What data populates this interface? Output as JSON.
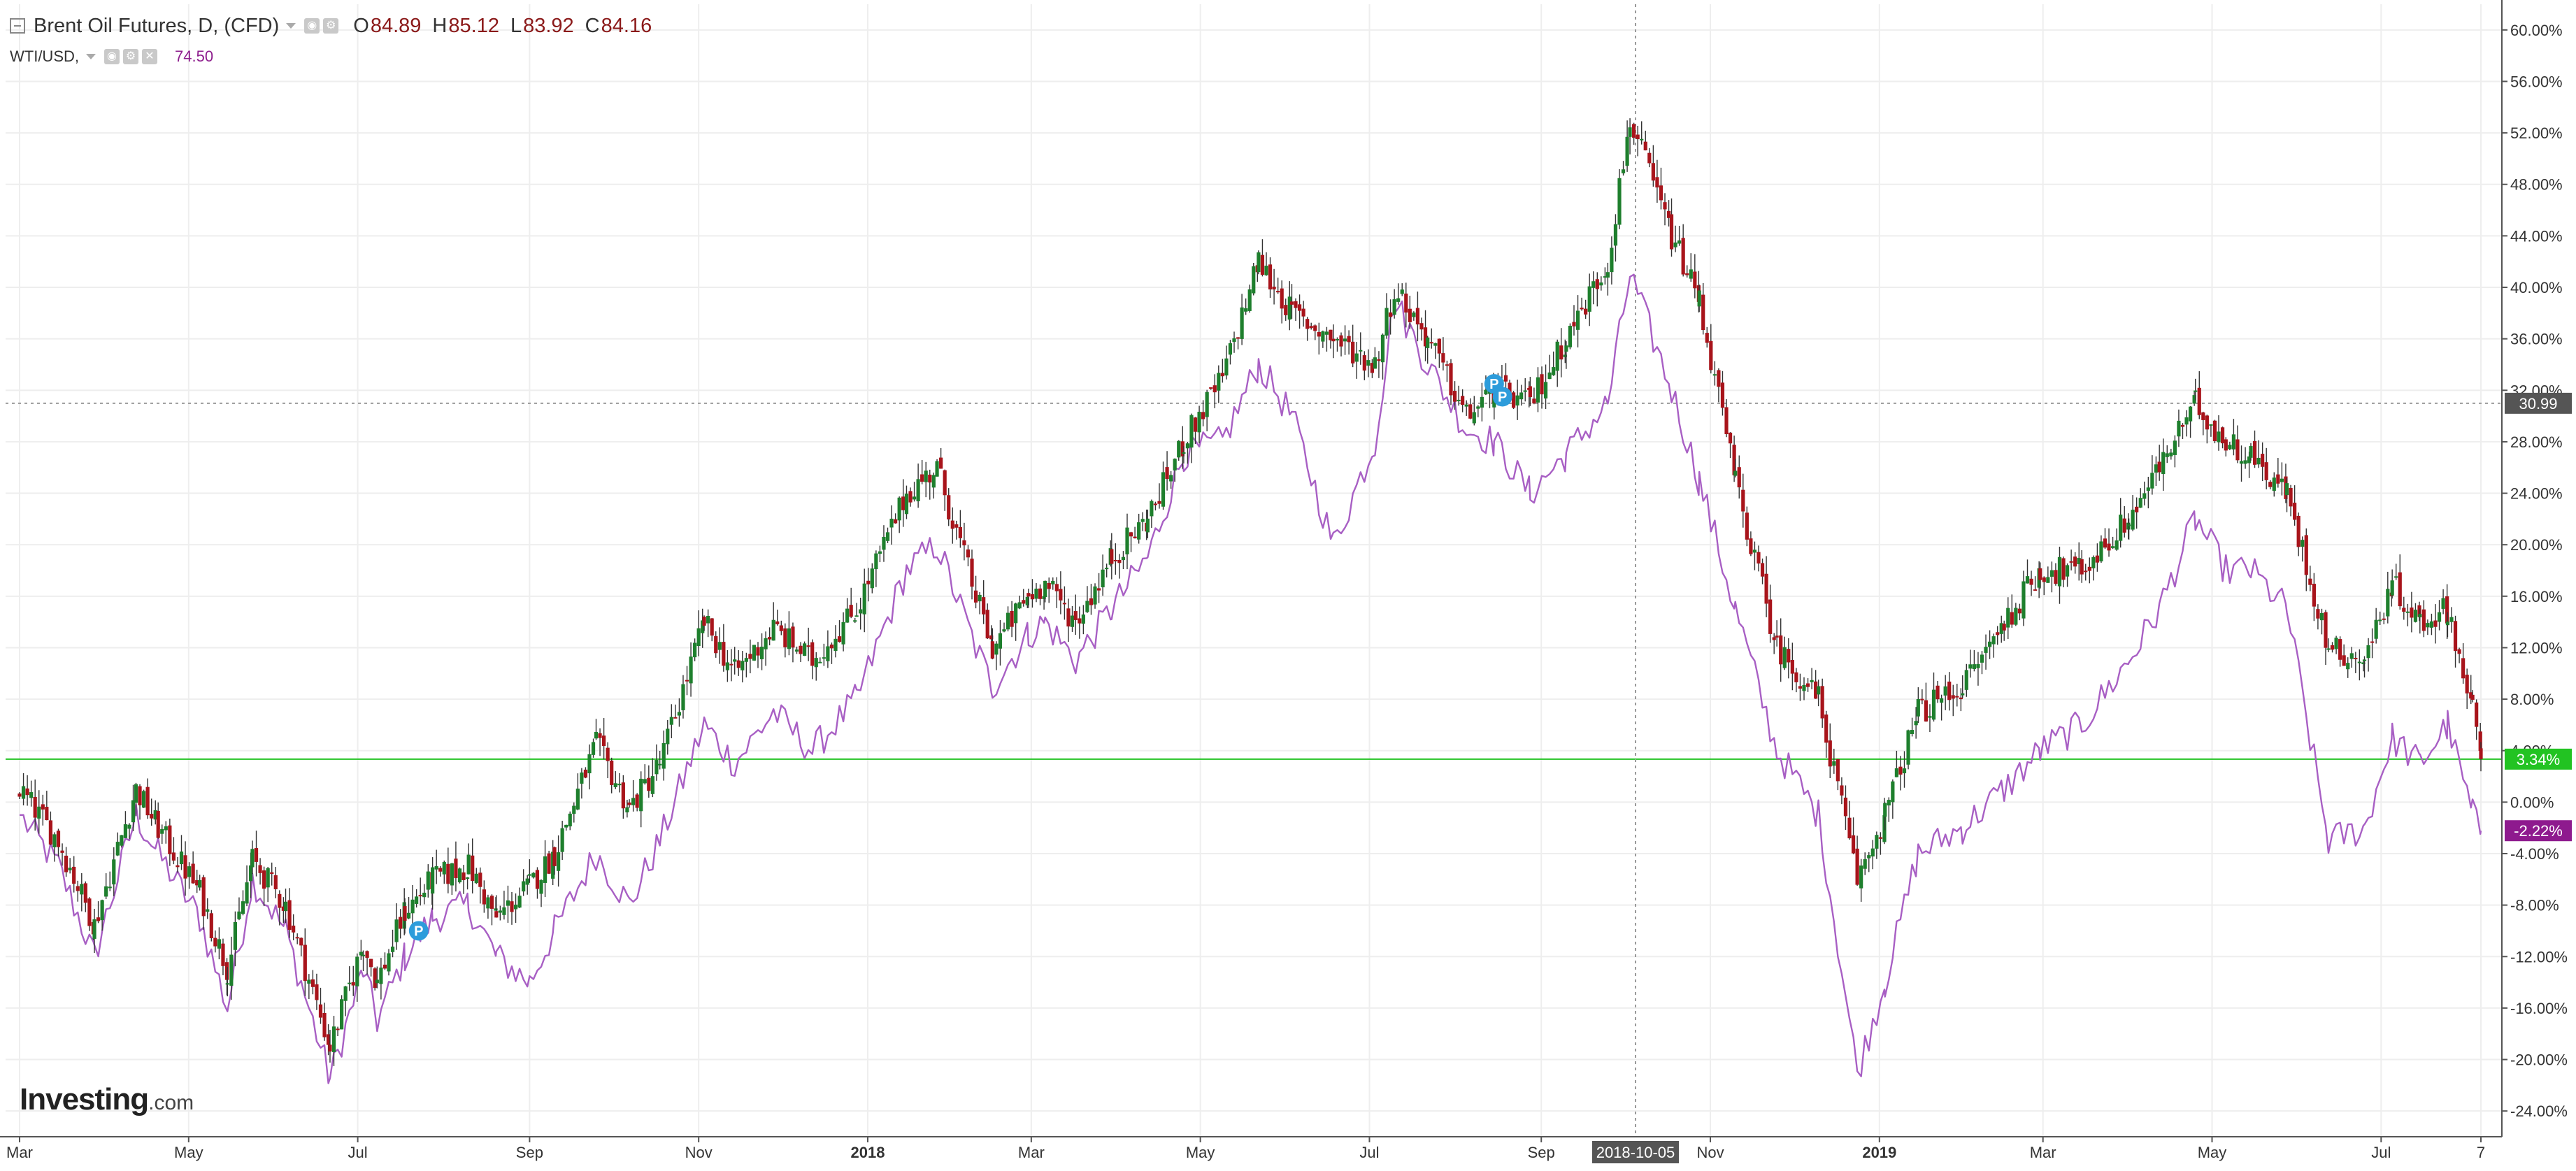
{
  "legend": {
    "main_series": "Brent Oil Futures, D, (CFD)",
    "ohlc": [
      {
        "key": "O",
        "value": "84.89"
      },
      {
        "key": "H",
        "value": "85.12"
      },
      {
        "key": "L",
        "value": "83.92"
      },
      {
        "key": "C",
        "value": "84.16"
      }
    ],
    "compare_series": "WTI/USD,",
    "compare_value": "74.50"
  },
  "logo": {
    "brand": "Investing",
    "suffix": ".com"
  },
  "colors": {
    "up_candle": "#1e7f2d",
    "down_candle": "#a8141b",
    "compare_line": "#a85fc4",
    "grid": "#eeeeee",
    "axis": "#555555",
    "brent_label_bg": "#22c322",
    "wti_label_bg": "#8e1a8e",
    "crosshair_label_bg": "#555555",
    "alert_marker": "#2d9cdb"
  },
  "crosshair": {
    "x_label": "2018-10-05",
    "y_label": "30.99"
  },
  "chart_data": {
    "type": "candlestick",
    "title": "Brent Oil Futures, D, (CFD)",
    "y_axis": {
      "unit": "%",
      "ylim": [
        -26,
        62
      ],
      "tick_values": [
        -24,
        -20,
        -16,
        -12,
        -8,
        -4,
        0,
        4,
        8,
        12,
        16,
        20,
        24,
        28,
        32,
        36,
        40,
        44,
        48,
        52,
        56,
        60
      ],
      "tick_labels": [
        "-24.00%",
        "-20.00%",
        "-16.00%",
        "-12.00%",
        "-8.00%",
        "-4.00%",
        "0.00%",
        "4.00%",
        "8.00%",
        "12.00%",
        "16.00%",
        "20.00%",
        "24.00%",
        "28.00%",
        "32.00%",
        "36.00%",
        "40.00%",
        "44.00%",
        "48.00%",
        "52.00%",
        "56.00%",
        "60.00%"
      ],
      "position": "right"
    },
    "x_axis": {
      "range": [
        "2017-03-01",
        "2019-08-06"
      ],
      "ticks": [
        {
          "date": "2017-03-01",
          "label": "Mar"
        },
        {
          "date": "2017-05-01",
          "label": "May"
        },
        {
          "date": "2017-07-01",
          "label": "Jul"
        },
        {
          "date": "2017-09-01",
          "label": "Sep"
        },
        {
          "date": "2017-11-01",
          "label": "Nov"
        },
        {
          "date": "2018-01-01",
          "label": "2018"
        },
        {
          "date": "2018-03-01",
          "label": "Mar"
        },
        {
          "date": "2018-05-01",
          "label": "May"
        },
        {
          "date": "2018-07-01",
          "label": "Jul"
        },
        {
          "date": "2018-09-01",
          "label": "Sep"
        },
        {
          "date": "2018-11-01",
          "label": "Nov"
        },
        {
          "date": "2019-01-01",
          "label": "2019"
        },
        {
          "date": "2019-03-01",
          "label": "Mar"
        },
        {
          "date": "2019-05-01",
          "label": "May"
        },
        {
          "date": "2019-07-01",
          "label": "Jul"
        },
        {
          "date": "2019-08-06",
          "label": "7"
        }
      ]
    },
    "grid": true,
    "series": [
      {
        "name": "Brent Oil Futures, D, (CFD)",
        "kind": "candlestick-path",
        "last_label": "3.34%",
        "last_value": 3.34,
        "points": [
          [
            "2017-03-01",
            1
          ],
          [
            "2017-03-15",
            -3
          ],
          [
            "2017-03-28",
            -9.5
          ],
          [
            "2017-04-12",
            1
          ],
          [
            "2017-04-20",
            -2
          ],
          [
            "2017-05-05",
            -7
          ],
          [
            "2017-05-15",
            -13
          ],
          [
            "2017-05-24",
            -4.5
          ],
          [
            "2017-06-05",
            -8
          ],
          [
            "2017-06-21",
            -19
          ],
          [
            "2017-07-03",
            -11
          ],
          [
            "2017-07-08",
            -14
          ],
          [
            "2017-07-18",
            -8.5
          ],
          [
            "2017-07-28",
            -6
          ],
          [
            "2017-08-10",
            -5
          ],
          [
            "2017-08-20",
            -9
          ],
          [
            "2017-09-01",
            -6.5
          ],
          [
            "2017-09-10",
            -4
          ],
          [
            "2017-09-25",
            4.5
          ],
          [
            "2017-10-07",
            -0.5
          ],
          [
            "2017-10-18",
            3
          ],
          [
            "2017-11-03",
            14
          ],
          [
            "2017-11-14",
            10
          ],
          [
            "2017-11-28",
            13.5
          ],
          [
            "2017-12-12",
            11
          ],
          [
            "2017-12-28",
            15
          ],
          [
            "2018-01-15",
            24
          ],
          [
            "2018-01-26",
            26
          ],
          [
            "2018-02-09",
            16
          ],
          [
            "2018-02-15",
            12
          ],
          [
            "2018-02-28",
            16
          ],
          [
            "2018-03-06",
            17
          ],
          [
            "2018-03-17",
            14
          ],
          [
            "2018-03-30",
            19
          ],
          [
            "2018-04-12",
            22
          ],
          [
            "2018-04-25",
            28
          ],
          [
            "2018-05-09",
            33
          ],
          [
            "2018-05-22",
            42
          ],
          [
            "2018-06-03",
            38
          ],
          [
            "2018-06-18",
            36
          ],
          [
            "2018-07-03",
            34
          ],
          [
            "2018-07-10",
            40
          ],
          [
            "2018-07-22",
            36
          ],
          [
            "2018-08-05",
            30
          ],
          [
            "2018-08-15",
            32
          ],
          [
            "2018-08-28",
            31
          ],
          [
            "2018-09-10",
            36
          ],
          [
            "2018-09-25",
            42
          ],
          [
            "2018-10-03",
            53
          ],
          [
            "2018-10-18",
            44
          ],
          [
            "2018-10-28",
            39
          ],
          [
            "2018-11-10",
            25
          ],
          [
            "2018-11-25",
            12
          ],
          [
            "2018-12-10",
            8
          ],
          [
            "2018-12-24",
            -6
          ],
          [
            "2019-01-03",
            -1
          ],
          [
            "2019-01-15",
            7
          ],
          [
            "2019-01-31",
            9
          ],
          [
            "2019-02-15",
            14
          ],
          [
            "2019-02-28",
            18
          ],
          [
            "2019-03-15",
            18
          ],
          [
            "2019-04-01",
            22
          ],
          [
            "2019-04-12",
            26
          ],
          [
            "2019-04-25",
            31
          ],
          [
            "2019-05-06",
            28
          ],
          [
            "2019-05-15",
            27
          ],
          [
            "2019-05-28",
            24
          ],
          [
            "2019-06-12",
            12
          ],
          [
            "2019-06-25",
            11
          ],
          [
            "2019-07-05",
            17
          ],
          [
            "2019-07-15",
            14
          ],
          [
            "2019-07-25",
            15
          ],
          [
            "2019-08-03",
            7
          ],
          [
            "2019-08-06",
            3.34
          ]
        ]
      },
      {
        "name": "WTI/USD",
        "kind": "line",
        "last_label": "-2.22%",
        "last_value": -2.22,
        "points": [
          [
            "2017-03-01",
            -1
          ],
          [
            "2017-03-15",
            -5
          ],
          [
            "2017-03-28",
            -12
          ],
          [
            "2017-04-12",
            -1
          ],
          [
            "2017-04-20",
            -4
          ],
          [
            "2017-05-05",
            -9
          ],
          [
            "2017-05-15",
            -16
          ],
          [
            "2017-05-24",
            -6
          ],
          [
            "2017-06-05",
            -10
          ],
          [
            "2017-06-21",
            -21.5
          ],
          [
            "2017-07-03",
            -13
          ],
          [
            "2017-07-08",
            -17
          ],
          [
            "2017-07-18",
            -12
          ],
          [
            "2017-07-28",
            -9
          ],
          [
            "2017-08-10",
            -8
          ],
          [
            "2017-08-20",
            -12
          ],
          [
            "2017-09-01",
            -14
          ],
          [
            "2017-09-10",
            -10
          ],
          [
            "2017-09-25",
            -4
          ],
          [
            "2017-10-07",
            -8
          ],
          [
            "2017-10-18",
            -3
          ],
          [
            "2017-11-03",
            6
          ],
          [
            "2017-11-14",
            3
          ],
          [
            "2017-11-28",
            7
          ],
          [
            "2017-12-12",
            4
          ],
          [
            "2017-12-28",
            8
          ],
          [
            "2018-01-15",
            18
          ],
          [
            "2018-01-26",
            20
          ],
          [
            "2018-02-09",
            12
          ],
          [
            "2018-02-15",
            9
          ],
          [
            "2018-02-28",
            13
          ],
          [
            "2018-03-06",
            14
          ],
          [
            "2018-03-17",
            11
          ],
          [
            "2018-03-30",
            15
          ],
          [
            "2018-04-12",
            19
          ],
          [
            "2018-04-25",
            27
          ],
          [
            "2018-05-09",
            28
          ],
          [
            "2018-05-22",
            34
          ],
          [
            "2018-06-03",
            30
          ],
          [
            "2018-06-18",
            20
          ],
          [
            "2018-07-03",
            28
          ],
          [
            "2018-07-10",
            39
          ],
          [
            "2018-07-22",
            34
          ],
          [
            "2018-08-05",
            29
          ],
          [
            "2018-08-15",
            28
          ],
          [
            "2018-08-28",
            24
          ],
          [
            "2018-09-10",
            27
          ],
          [
            "2018-09-25",
            31
          ],
          [
            "2018-10-03",
            41
          ],
          [
            "2018-10-18",
            32
          ],
          [
            "2018-10-28",
            25
          ],
          [
            "2018-11-10",
            15
          ],
          [
            "2018-11-25",
            4
          ],
          [
            "2018-12-10",
            -1
          ],
          [
            "2018-12-24",
            -21
          ],
          [
            "2019-01-03",
            -14
          ],
          [
            "2019-01-15",
            -4
          ],
          [
            "2019-01-31",
            -2
          ],
          [
            "2019-02-15",
            1
          ],
          [
            "2019-02-28",
            4
          ],
          [
            "2019-03-15",
            6
          ],
          [
            "2019-04-01",
            11
          ],
          [
            "2019-04-12",
            15
          ],
          [
            "2019-04-25",
            22
          ],
          [
            "2019-05-06",
            18
          ],
          [
            "2019-05-15",
            18
          ],
          [
            "2019-05-28",
            15
          ],
          [
            "2019-06-12",
            -3
          ],
          [
            "2019-06-25",
            -2
          ],
          [
            "2019-07-05",
            5
          ],
          [
            "2019-07-15",
            3
          ],
          [
            "2019-07-25",
            6
          ],
          [
            "2019-08-03",
            -1
          ],
          [
            "2019-08-06",
            -2.22
          ]
        ]
      }
    ],
    "annotations": [
      {
        "type": "marker",
        "label": "P",
        "date": "2017-07-23",
        "value": -10
      },
      {
        "type": "marker",
        "label": "P",
        "date": "2018-08-15",
        "value": 32.5
      },
      {
        "type": "marker",
        "label": "P",
        "date": "2018-08-18",
        "value": 31.5
      }
    ],
    "horizontal_lines": [
      {
        "value": 3.34,
        "color": "#22c322"
      },
      {
        "value": 30.99,
        "style": "dotted"
      }
    ]
  }
}
